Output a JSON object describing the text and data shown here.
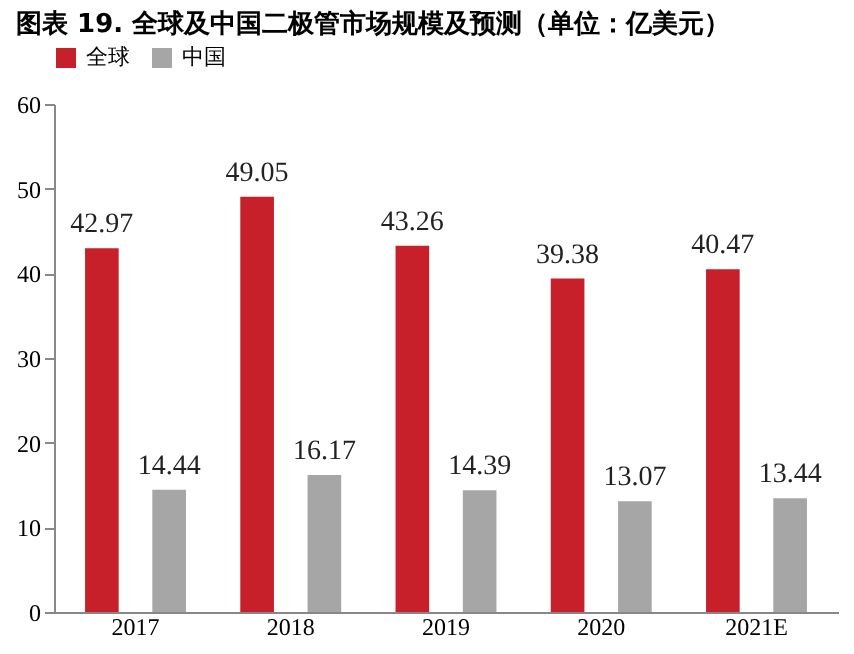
{
  "chart_data": {
    "type": "bar",
    "title": "图表 19. 全球及中国二极管市场规模及预测（单位：亿美元）",
    "categories": [
      "2017",
      "2018",
      "2019",
      "2020",
      "2021E"
    ],
    "series": [
      {
        "name": "全球",
        "color": "#c8202a",
        "values": [
          42.97,
          49.05,
          43.26,
          39.38,
          40.47
        ]
      },
      {
        "name": "中国",
        "color": "#a6a6a6",
        "values": [
          14.44,
          16.17,
          14.39,
          13.07,
          13.44
        ]
      }
    ],
    "ylim": [
      0,
      60
    ],
    "yticks": [
      0,
      10,
      20,
      30,
      40,
      50,
      60
    ],
    "grid": false,
    "legend": "top",
    "data_labels": true
  }
}
